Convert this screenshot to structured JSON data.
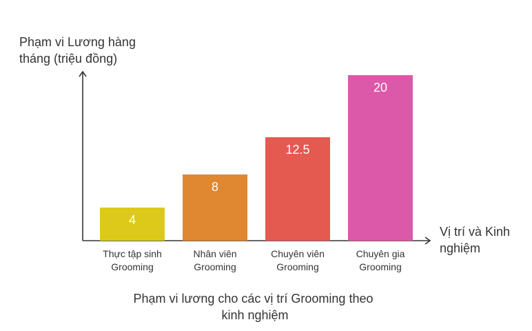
{
  "chart_data": {
    "type": "bar",
    "title": "Phạm vi lương cho các vị trí Grooming theo kinh nghiệm",
    "title_lines": [
      "Phạm vi lương cho các vị trí Grooming theo",
      "kinh nghiệm"
    ],
    "ylabel": "Phạm vi Lương hàng tháng (triệu đồng)",
    "ylabel_lines": [
      "Phạm vi Lương hàng",
      "tháng (triệu đồng)"
    ],
    "xlabel": "Vị trí và Kinh nghiệm",
    "xlabel_lines": [
      "Vị trí và Kinh",
      "nghiệm"
    ],
    "categories": [
      "Thực tập sinh Grooming",
      "Nhân viên Grooming",
      "Chuyên viên Grooming",
      "Chuyên gia Grooming"
    ],
    "category_lines": [
      [
        "Thực tập sinh",
        "Grooming"
      ],
      [
        "Nhân viên",
        "Grooming"
      ],
      [
        "Chuyên viên",
        "Grooming"
      ],
      [
        "Chuyên gia",
        "Grooming"
      ]
    ],
    "values": [
      4,
      8,
      12.5,
      20
    ],
    "data_labels": [
      "4",
      "8",
      "12.5",
      "20"
    ],
    "colors": [
      "#ddc919",
      "#e08732",
      "#e45a51",
      "#dc58a8"
    ],
    "label_color": "#ffffff",
    "axis_color": "#333333",
    "ylim": [
      0,
      22.5
    ],
    "grid": false,
    "legend": "none"
  }
}
